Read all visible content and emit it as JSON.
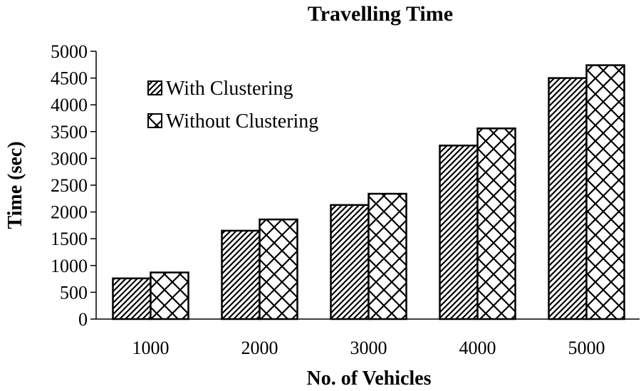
{
  "chart_data": {
    "type": "bar",
    "title": "Travelling Time",
    "xlabel": "No. of Vehicles",
    "ylabel": "Time (sec)",
    "categories": [
      "1000",
      "2000",
      "3000",
      "4000",
      "5000"
    ],
    "series": [
      {
        "name": "With Clustering",
        "values": [
          760,
          1650,
          2130,
          3240,
          4500
        ]
      },
      {
        "name": "Without Clustering",
        "values": [
          870,
          1860,
          2340,
          3560,
          4740
        ]
      }
    ],
    "ylim": [
      0,
      5000
    ],
    "yticks": [
      0,
      500,
      1000,
      1500,
      2000,
      2500,
      3000,
      3500,
      4000,
      4500,
      5000
    ],
    "grid": false,
    "legend_position": "top-left"
  }
}
